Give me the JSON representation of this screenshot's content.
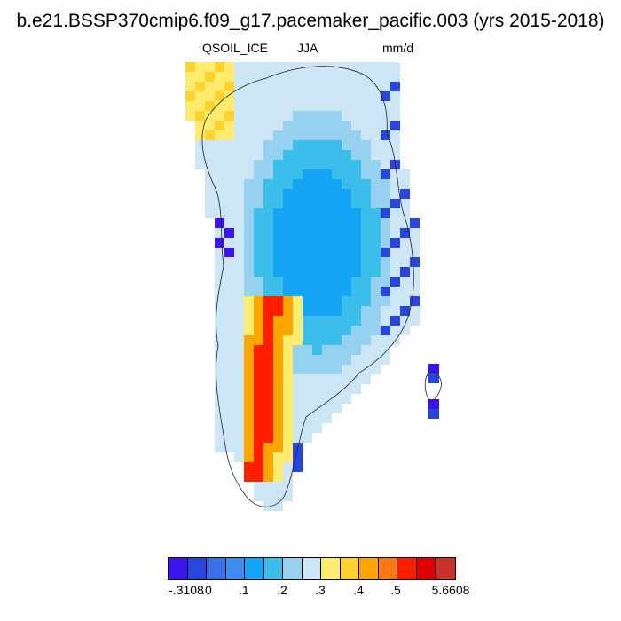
{
  "title": "b.e21.BSSP370cmip6.f09_g17.pacemaker_pacific.003 (yrs 2015-2018)",
  "subtitle": {
    "variable": "QSOIL_ICE",
    "season": "JJA",
    "units": "mm/d"
  },
  "colorbar": {
    "colors": [
      "#3c14f0",
      "#2846dc",
      "#3c6ee6",
      "#3c8cf0",
      "#14a5f5",
      "#3cbeeb",
      "#96d2f0",
      "#cde6f5",
      "#ffeb6e",
      "#ffd22d",
      "#ffa500",
      "#ff7814",
      "#ff1e00",
      "#e10000",
      "#c83228"
    ],
    "tick_labels": [
      "-.3108",
      ".0",
      ".1",
      ".2",
      ".3",
      ".4",
      ".5",
      "5.6608"
    ]
  },
  "chart_data": {
    "type": "heatmap",
    "title": "b.e21.BSSP370cmip6.f09_g17.pacemaker_pacific.003 (yrs 2015-2018)",
    "variable": "QSOIL_ICE",
    "season": "JJA",
    "units": "mm/d",
    "region": "Greenland",
    "range": [
      -0.3108,
      5.6608
    ],
    "levels": [
      -0.3108,
      0.0,
      0.05,
      0.1,
      0.15,
      0.2,
      0.25,
      0.3,
      0.35,
      0.4,
      0.45,
      0.5,
      5.6608
    ],
    "pattern": [
      "low values (~0.0-0.15) over the interior ice sheet",
      "maximum (>0.5) along the southwest coast",
      "negative values (<0.0) along southeast and eastern margins",
      "moderate values (~0.3-0.4) in the northwest corner"
    ]
  }
}
